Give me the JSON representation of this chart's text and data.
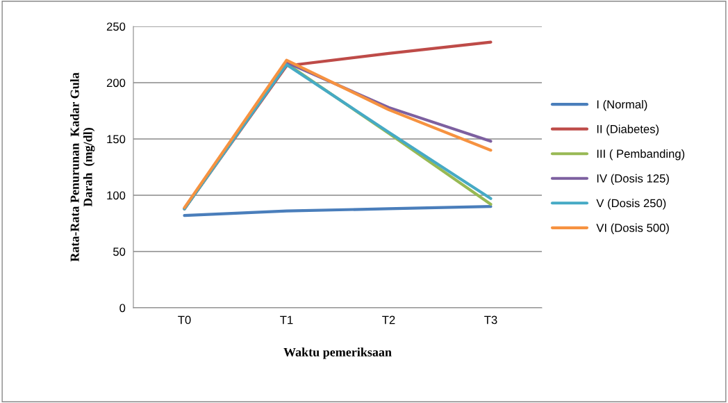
{
  "chart_data": {
    "type": "line",
    "xlabel": "Waktu pemeriksaan",
    "ylabel": "Rata-Rata Penurunan  Kadar Gula\nDarah  (mg/dl)",
    "categories": [
      "T0",
      "T1",
      "T2",
      "T3"
    ],
    "series": [
      {
        "name": "I (Normal)",
        "color": "#4a7ebb",
        "values": [
          82,
          86,
          88,
          90
        ]
      },
      {
        "name": "II (Diabetes)",
        "color": "#be4b48",
        "values": [
          88,
          215,
          226,
          236
        ]
      },
      {
        "name": "III ( Pembanding)",
        "color": "#98b954",
        "values": [
          88,
          217,
          155,
          92
        ]
      },
      {
        "name": "IV (Dosis 125)",
        "color": "#7d60a0",
        "values": [
          88,
          218,
          178,
          148
        ]
      },
      {
        "name": "V (Dosis 250)",
        "color": "#46aac5",
        "values": [
          88,
          216,
          156,
          97
        ]
      },
      {
        "name": "VI (Dosis 500)",
        "color": "#f69240",
        "values": [
          89,
          220,
          176,
          140
        ]
      }
    ],
    "ylim": [
      0,
      250
    ],
    "yticks": [
      0,
      50,
      100,
      150,
      200,
      250
    ],
    "grid": "y",
    "legend": "right",
    "marker": "none",
    "line_style": "solid"
  }
}
